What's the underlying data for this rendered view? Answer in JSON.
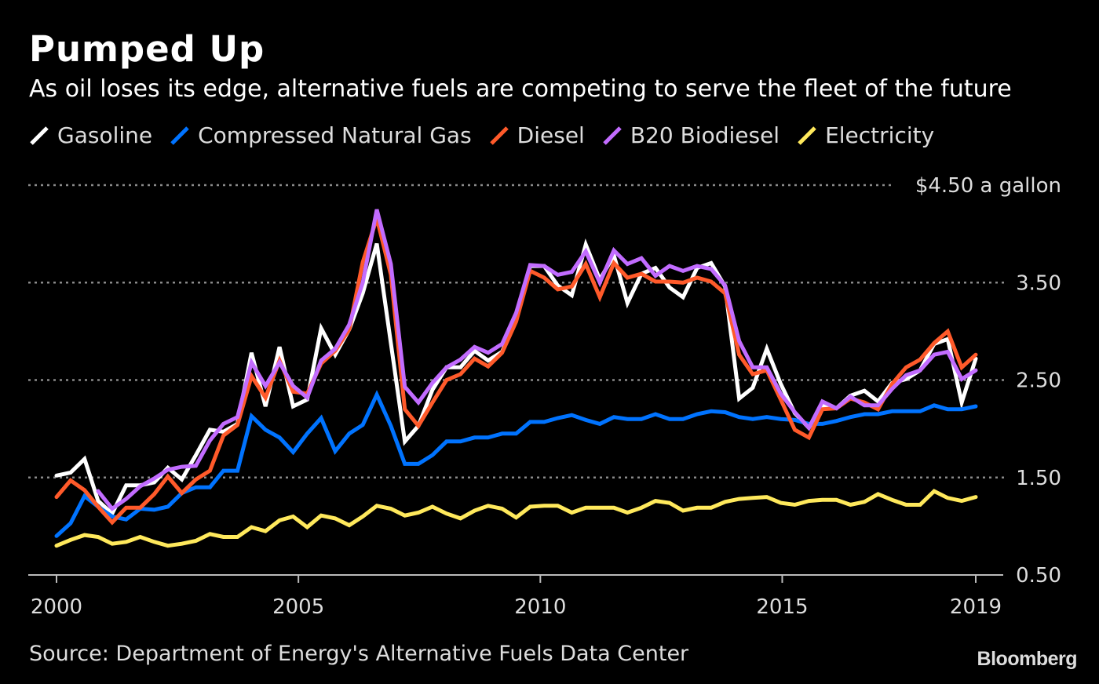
{
  "header": {
    "title": "Pumped Up",
    "subtitle": "As oil loses its edge, alternative fuels are competing to serve the fleet of the future"
  },
  "footer": {
    "source": "Source: Department of Energy's Alternative Fuels Data Center",
    "logo": "Bloomberg"
  },
  "chart_data": {
    "type": "line",
    "title": "Pumped Up",
    "subtitle": "As oil loses its edge, alternative fuels are competing to serve the fleet of the future",
    "xlabel": "",
    "ylabel": "",
    "unit_label": "$4.50 a gallon",
    "xlim": [
      2000,
      2019
    ],
    "ylim": [
      0.5,
      4.5
    ],
    "x_ticks": [
      2000,
      2005,
      2010,
      2015,
      2019
    ],
    "x_tick_labels": [
      "2000",
      "2005",
      "2010",
      "2015",
      "2019"
    ],
    "y_ticks": [
      0.5,
      1.5,
      2.5,
      3.5,
      4.5
    ],
    "y_tick_labels": [
      "0.50",
      "1.50",
      "2.50",
      "3.50"
    ],
    "grid": "horizontal dotted",
    "legend_position": "top-left",
    "background": "#000000",
    "x": [
      2000,
      2000.29,
      2000.58,
      2000.86,
      2001.15,
      2001.44,
      2001.73,
      2002.02,
      2002.3,
      2002.59,
      2002.88,
      2003.17,
      2003.45,
      2003.74,
      2004.03,
      2004.32,
      2004.61,
      2004.89,
      2005.18,
      2005.47,
      2005.76,
      2006.05,
      2006.33,
      2006.62,
      2006.91,
      2007.2,
      2007.48,
      2007.77,
      2008.06,
      2008.35,
      2008.64,
      2008.92,
      2009.21,
      2009.5,
      2009.79,
      2010.08,
      2010.36,
      2010.65,
      2010.94,
      2011.23,
      2011.52,
      2011.8,
      2012.09,
      2012.38,
      2012.67,
      2012.95,
      2013.24,
      2013.53,
      2013.82,
      2014.11,
      2014.39,
      2014.68,
      2014.97,
      2015.26,
      2015.55,
      2015.83,
      2016.12,
      2016.41,
      2016.7,
      2016.98,
      2017.27,
      2017.56,
      2017.85,
      2018.14,
      2018.42,
      2018.71,
      2019.0
    ],
    "series": [
      {
        "name": "Gasoline",
        "color": "#ffffff",
        "values": [
          1.52,
          1.55,
          1.69,
          1.26,
          1.13,
          1.42,
          1.42,
          1.45,
          1.6,
          1.48,
          1.73,
          1.99,
          1.97,
          2.05,
          2.78,
          2.23,
          2.84,
          2.23,
          2.3,
          3.03,
          2.76,
          3.02,
          3.39,
          3.9,
          2.88,
          1.87,
          2.03,
          2.4,
          2.63,
          2.63,
          2.8,
          2.7,
          2.79,
          3.13,
          3.67,
          3.67,
          3.47,
          3.37,
          3.89,
          3.53,
          3.78,
          3.29,
          3.59,
          3.65,
          3.45,
          3.35,
          3.65,
          3.7,
          3.46,
          2.31,
          2.42,
          2.82,
          2.46,
          2.16,
          2.01,
          2.24,
          2.21,
          2.34,
          2.39,
          2.28,
          2.47,
          2.51,
          2.6,
          2.87,
          2.92,
          2.27,
          2.72
        ]
      },
      {
        "name": "Compressed Natural Gas",
        "color": "#0073ff",
        "values": [
          0.9,
          1.03,
          1.31,
          1.2,
          1.1,
          1.07,
          1.18,
          1.17,
          1.2,
          1.34,
          1.4,
          1.4,
          1.57,
          1.57,
          2.13,
          1.99,
          1.91,
          1.76,
          1.95,
          2.11,
          1.77,
          1.95,
          2.04,
          2.35,
          2.03,
          1.64,
          1.64,
          1.73,
          1.87,
          1.87,
          1.91,
          1.91,
          1.95,
          1.95,
          2.07,
          2.07,
          2.11,
          2.14,
          2.09,
          2.05,
          2.12,
          2.1,
          2.1,
          2.15,
          2.1,
          2.1,
          2.15,
          2.18,
          2.17,
          2.12,
          2.1,
          2.12,
          2.1,
          2.09,
          2.05,
          2.05,
          2.08,
          2.12,
          2.15,
          2.15,
          2.18,
          2.18,
          2.18,
          2.24,
          2.2,
          2.2,
          2.23
        ]
      },
      {
        "name": "Diesel",
        "color": "#ff5a2a",
        "values": [
          1.3,
          1.47,
          1.37,
          1.2,
          1.04,
          1.19,
          1.19,
          1.33,
          1.51,
          1.34,
          1.48,
          1.57,
          1.93,
          2.04,
          2.54,
          2.32,
          2.7,
          2.38,
          2.36,
          2.67,
          2.8,
          3.02,
          3.71,
          4.16,
          3.58,
          2.2,
          2.03,
          2.27,
          2.5,
          2.56,
          2.72,
          2.64,
          2.78,
          3.1,
          3.62,
          3.55,
          3.43,
          3.46,
          3.69,
          3.35,
          3.7,
          3.55,
          3.59,
          3.51,
          3.51,
          3.5,
          3.55,
          3.51,
          3.39,
          2.76,
          2.56,
          2.6,
          2.3,
          1.99,
          1.91,
          2.2,
          2.21,
          2.31,
          2.27,
          2.2,
          2.46,
          2.63,
          2.71,
          2.88,
          3.0,
          2.63,
          2.76
        ]
      },
      {
        "name": "B20 Biodiesel",
        "color": "#c26cff",
        "values": [
          null,
          null,
          null,
          1.36,
          1.18,
          1.28,
          1.41,
          1.49,
          1.58,
          1.61,
          1.62,
          1.88,
          2.05,
          2.12,
          2.68,
          2.44,
          2.68,
          2.44,
          2.32,
          2.7,
          2.82,
          3.07,
          3.5,
          4.25,
          3.69,
          2.43,
          2.27,
          2.47,
          2.63,
          2.71,
          2.84,
          2.78,
          2.87,
          3.19,
          3.68,
          3.67,
          3.58,
          3.61,
          3.82,
          3.5,
          3.83,
          3.69,
          3.75,
          3.57,
          3.67,
          3.62,
          3.67,
          3.64,
          3.47,
          2.9,
          2.63,
          2.63,
          2.36,
          2.17,
          2.01,
          2.28,
          2.21,
          2.33,
          2.24,
          2.24,
          2.41,
          2.55,
          2.6,
          2.76,
          2.79,
          2.51,
          2.6
        ]
      },
      {
        "name": "Electricity",
        "color": "#ffe95c",
        "values": [
          0.8,
          0.86,
          0.91,
          0.89,
          0.82,
          0.84,
          0.89,
          0.84,
          0.8,
          0.82,
          0.85,
          0.92,
          0.89,
          0.89,
          0.99,
          0.95,
          1.06,
          1.1,
          0.99,
          1.11,
          1.08,
          1.01,
          1.1,
          1.21,
          1.18,
          1.11,
          1.14,
          1.2,
          1.13,
          1.08,
          1.16,
          1.21,
          1.18,
          1.09,
          1.2,
          1.21,
          1.21,
          1.14,
          1.19,
          1.19,
          1.19,
          1.14,
          1.19,
          1.26,
          1.24,
          1.16,
          1.19,
          1.19,
          1.25,
          1.28,
          1.29,
          1.3,
          1.24,
          1.22,
          1.26,
          1.27,
          1.27,
          1.22,
          1.25,
          1.33,
          1.27,
          1.22,
          1.22,
          1.36,
          1.29,
          1.26,
          1.3
        ]
      }
    ]
  }
}
